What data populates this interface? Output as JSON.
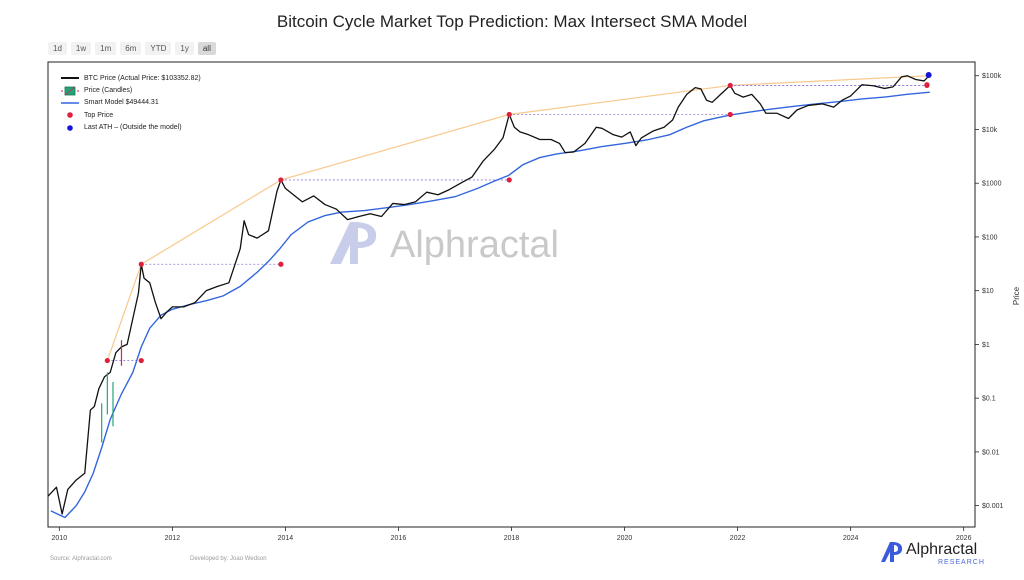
{
  "chart_data": {
    "type": "line",
    "title": "Bitcoin Cycle Market Top Prediction: Max Intersect SMA Model",
    "ylabel": "Price",
    "y_scale": "log",
    "ylim": [
      0.0004,
      180000
    ],
    "xlim": [
      2009.8,
      2026.2
    ],
    "x_ticks": [
      2010,
      2012,
      2014,
      2016,
      2018,
      2020,
      2022,
      2024,
      2026
    ],
    "y_ticks": [
      {
        "value": 0.001,
        "label": "$0.001"
      },
      {
        "value": 0.01,
        "label": "$0.01"
      },
      {
        "value": 0.1,
        "label": "$0.1"
      },
      {
        "value": 1,
        "label": "$1"
      },
      {
        "value": 10,
        "label": "$10"
      },
      {
        "value": 100,
        "label": "$100"
      },
      {
        "value": 1000,
        "label": "$1000"
      },
      {
        "value": 10000,
        "label": "$10k"
      },
      {
        "value": 100000,
        "label": "$100k"
      }
    ],
    "legend": [
      {
        "label": "BTC Price (Actual Price: $103352.82)",
        "key": "line",
        "color": "#111111"
      },
      {
        "label": "Price (Candles)",
        "key": "candle",
        "color": "#22a37a"
      },
      {
        "label": "Smart Model $49444.31",
        "key": "line",
        "color": "#3366dd"
      },
      {
        "label": "Top Price",
        "key": "dot",
        "color": "#e0203b"
      },
      {
        "label": "Last ATH – (Outside the model)",
        "key": "dot",
        "color": "#1515d6"
      }
    ],
    "series": [
      {
        "name": "BTC Price",
        "color": "#111111",
        "points": [
          [
            2009.8,
            0.0015
          ],
          [
            2009.95,
            0.0022
          ],
          [
            2010.05,
            0.0007
          ],
          [
            2010.15,
            0.002
          ],
          [
            2010.3,
            0.003
          ],
          [
            2010.45,
            0.004
          ],
          [
            2010.55,
            0.06
          ],
          [
            2010.62,
            0.07
          ],
          [
            2010.7,
            0.15
          ],
          [
            2010.8,
            0.25
          ],
          [
            2010.9,
            0.3
          ],
          [
            2011.0,
            0.7
          ],
          [
            2011.1,
            0.9
          ],
          [
            2011.2,
            1.0
          ],
          [
            2011.3,
            3
          ],
          [
            2011.4,
            9
          ],
          [
            2011.45,
            31
          ],
          [
            2011.5,
            17
          ],
          [
            2011.6,
            14
          ],
          [
            2011.7,
            6
          ],
          [
            2011.8,
            3
          ],
          [
            2011.9,
            4
          ],
          [
            2012.0,
            5
          ],
          [
            2012.2,
            5
          ],
          [
            2012.4,
            6
          ],
          [
            2012.6,
            10
          ],
          [
            2012.8,
            12
          ],
          [
            2013.0,
            14
          ],
          [
            2013.2,
            60
          ],
          [
            2013.27,
            200
          ],
          [
            2013.35,
            110
          ],
          [
            2013.5,
            95
          ],
          [
            2013.7,
            130
          ],
          [
            2013.85,
            700
          ],
          [
            2013.92,
            1150
          ],
          [
            2014.0,
            800
          ],
          [
            2014.15,
            600
          ],
          [
            2014.3,
            450
          ],
          [
            2014.5,
            580
          ],
          [
            2014.7,
            400
          ],
          [
            2014.9,
            330
          ],
          [
            2015.1,
            210
          ],
          [
            2015.3,
            240
          ],
          [
            2015.5,
            270
          ],
          [
            2015.7,
            240
          ],
          [
            2015.9,
            420
          ],
          [
            2016.1,
            400
          ],
          [
            2016.3,
            450
          ],
          [
            2016.5,
            680
          ],
          [
            2016.7,
            610
          ],
          [
            2016.9,
            760
          ],
          [
            2017.1,
            1000
          ],
          [
            2017.3,
            1300
          ],
          [
            2017.5,
            2600
          ],
          [
            2017.7,
            4300
          ],
          [
            2017.85,
            7000
          ],
          [
            2017.96,
            19000
          ],
          [
            2018.05,
            11000
          ],
          [
            2018.15,
            9000
          ],
          [
            2018.3,
            8000
          ],
          [
            2018.5,
            6500
          ],
          [
            2018.7,
            6500
          ],
          [
            2018.85,
            5500
          ],
          [
            2018.95,
            3700
          ],
          [
            2019.1,
            3800
          ],
          [
            2019.3,
            5500
          ],
          [
            2019.5,
            11000
          ],
          [
            2019.6,
            10500
          ],
          [
            2019.8,
            8000
          ],
          [
            2019.95,
            7200
          ],
          [
            2020.1,
            9000
          ],
          [
            2020.2,
            5000
          ],
          [
            2020.3,
            7000
          ],
          [
            2020.5,
            9300
          ],
          [
            2020.7,
            11000
          ],
          [
            2020.85,
            15000
          ],
          [
            2020.95,
            26000
          ],
          [
            2021.1,
            45000
          ],
          [
            2021.25,
            60000
          ],
          [
            2021.35,
            57000
          ],
          [
            2021.45,
            35000
          ],
          [
            2021.55,
            32000
          ],
          [
            2021.7,
            45000
          ],
          [
            2021.87,
            66000
          ],
          [
            2021.95,
            47000
          ],
          [
            2022.1,
            40000
          ],
          [
            2022.25,
            45000
          ],
          [
            2022.4,
            30000
          ],
          [
            2022.5,
            20000
          ],
          [
            2022.7,
            20000
          ],
          [
            2022.9,
            16000
          ],
          [
            2023.05,
            23000
          ],
          [
            2023.25,
            28000
          ],
          [
            2023.5,
            30000
          ],
          [
            2023.7,
            26000
          ],
          [
            2023.85,
            35000
          ],
          [
            2024.0,
            42000
          ],
          [
            2024.2,
            68000
          ],
          [
            2024.4,
            65000
          ],
          [
            2024.6,
            58000
          ],
          [
            2024.75,
            62000
          ],
          [
            2024.9,
            95000
          ],
          [
            2025.0,
            100000
          ],
          [
            2025.15,
            85000
          ],
          [
            2025.3,
            80000
          ],
          [
            2025.4,
            103352.82
          ]
        ]
      },
      {
        "name": "Smart Model",
        "color": "#3366dd",
        "points": [
          [
            2009.85,
            0.0008
          ],
          [
            2010.1,
            0.0006
          ],
          [
            2010.3,
            0.001
          ],
          [
            2010.45,
            0.0018
          ],
          [
            2010.6,
            0.004
          ],
          [
            2010.75,
            0.012
          ],
          [
            2010.9,
            0.04
          ],
          [
            2011.1,
            0.12
          ],
          [
            2011.3,
            0.3
          ],
          [
            2011.45,
            0.9
          ],
          [
            2011.6,
            2.0
          ],
          [
            2011.8,
            3.5
          ],
          [
            2012.0,
            4.5
          ],
          [
            2012.3,
            5.5
          ],
          [
            2012.6,
            6.5
          ],
          [
            2012.9,
            8
          ],
          [
            2013.2,
            12
          ],
          [
            2013.5,
            22
          ],
          [
            2013.7,
            35
          ],
          [
            2013.9,
            60
          ],
          [
            2014.1,
            110
          ],
          [
            2014.4,
            190
          ],
          [
            2014.7,
            250
          ],
          [
            2015.0,
            290
          ],
          [
            2015.4,
            310
          ],
          [
            2015.8,
            350
          ],
          [
            2016.2,
            400
          ],
          [
            2016.6,
            470
          ],
          [
            2017.0,
            560
          ],
          [
            2017.4,
            800
          ],
          [
            2017.7,
            1100
          ],
          [
            2017.95,
            1400
          ],
          [
            2018.2,
            2200
          ],
          [
            2018.5,
            3000
          ],
          [
            2018.8,
            3500
          ],
          [
            2019.2,
            4000
          ],
          [
            2019.6,
            4800
          ],
          [
            2020.0,
            5500
          ],
          [
            2020.4,
            6400
          ],
          [
            2020.8,
            8000
          ],
          [
            2021.1,
            11000
          ],
          [
            2021.4,
            14500
          ],
          [
            2021.7,
            17000
          ],
          [
            2021.87,
            18500
          ],
          [
            2022.2,
            21000
          ],
          [
            2022.6,
            24000
          ],
          [
            2023.0,
            27000
          ],
          [
            2023.4,
            30000
          ],
          [
            2023.8,
            33000
          ],
          [
            2024.2,
            37000
          ],
          [
            2024.6,
            40000
          ],
          [
            2025.0,
            45000
          ],
          [
            2025.4,
            49444.31
          ]
        ]
      }
    ],
    "top_prices": [
      [
        2010.85,
        0.5
      ],
      [
        2011.45,
        31
      ],
      [
        2013.92,
        1150
      ],
      [
        2017.96,
        19000
      ],
      [
        2021.87,
        66000
      ],
      [
        2025.35,
        68000
      ]
    ],
    "model_intersects": [
      [
        2011.45,
        0.5
      ],
      [
        2013.92,
        31
      ],
      [
        2017.96,
        1150
      ],
      [
        2021.87,
        19000
      ],
      [
        2025.35,
        66000
      ]
    ],
    "last_ath": [
      [
        2025.38,
        103352.82
      ]
    ],
    "watermark": "Alphractal",
    "source": "Source: Alphractal.com",
    "developer": "Developed by: Joao Wedson",
    "brand": {
      "name": "Alphractal",
      "sub": "RESEARCH"
    }
  },
  "ranges": [
    "1d",
    "1w",
    "1m",
    "6m",
    "YTD",
    "1y",
    "all"
  ]
}
